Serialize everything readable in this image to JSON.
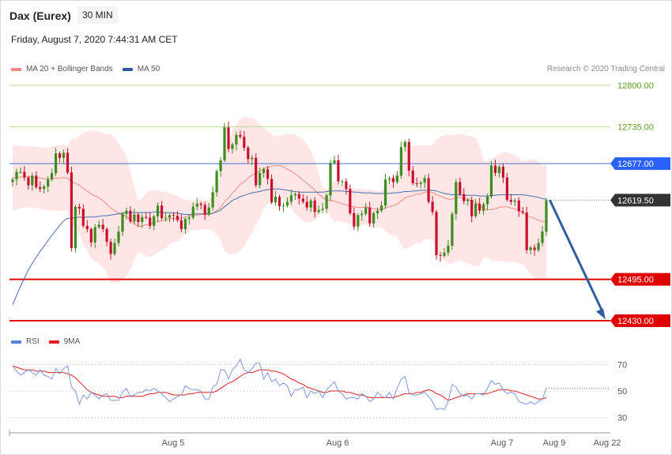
{
  "header": {
    "instrument": "Dax (Eurex)",
    "timeframe": "30 MIN",
    "datetime": "Friday, August 7, 2020 7:44:31 AM CET"
  },
  "legend_main": [
    {
      "label": "MA 20 + Bollinger Bands",
      "color": "#f08a80"
    },
    {
      "label": "MA 50",
      "color": "#2e5a9c"
    }
  ],
  "credit": "Research © 2020 Trading Central",
  "legend_rsi": [
    {
      "label": "RSI",
      "color": "#5b7fd6"
    },
    {
      "label": "9MA",
      "color": "#e02020"
    }
  ],
  "colors": {
    "up": "#3c8c1e",
    "down": "#c8102e",
    "resistance": "#8bc34a",
    "pivot": "#2962ff",
    "support": "#e00000",
    "last": "#333333",
    "arrow": "#2e5f9e"
  },
  "chart_data": [
    {
      "type": "candlestick",
      "title": "Dax (Eurex)",
      "timeframe": "30 MIN",
      "x_labels": [
        "Aug 5",
        "Aug 6",
        "Aug 7",
        "Aug 9",
        "Aug 22"
      ],
      "ylim": [
        12412,
        12832
      ],
      "levels": [
        {
          "value": 12800.0,
          "label": "12800.00",
          "kind": "resistance"
        },
        {
          "value": 12735.0,
          "label": "12735.00",
          "kind": "resistance"
        },
        {
          "value": 12677.0,
          "label": "12677.00",
          "kind": "pivot"
        },
        {
          "value": 12619.5,
          "label": "12619.50",
          "kind": "last"
        },
        {
          "value": 12495.0,
          "label": "12495.00",
          "kind": "support"
        },
        {
          "value": 12430.0,
          "label": "12430.00",
          "kind": "support"
        }
      ],
      "closes": [
        12652,
        12664,
        12664,
        12655,
        12643,
        12658,
        12640,
        12637,
        12641,
        12652,
        12662,
        12693,
        12686,
        12694,
        12663,
        12544,
        12609,
        12606,
        12579,
        12574,
        12553,
        12577,
        12581,
        12574,
        12554,
        12535,
        12552,
        12570,
        12598,
        12603,
        12586,
        12597,
        12585,
        12593,
        12592,
        12579,
        12594,
        12611,
        12591,
        12592,
        12596,
        12595,
        12588,
        12574,
        12590,
        12592,
        12609,
        12614,
        12612,
        12597,
        12608,
        12632,
        12665,
        12682,
        12734,
        12700,
        12707,
        12722,
        12719,
        12702,
        12684,
        12686,
        12643,
        12662,
        12668,
        12653,
        12616,
        12625,
        12610,
        12611,
        12617,
        12627,
        12629,
        12622,
        12617,
        12608,
        12619,
        12601,
        12604,
        12606,
        12627,
        12678,
        12682,
        12649,
        12649,
        12637,
        12599,
        12578,
        12596,
        12598,
        12608,
        12583,
        12599,
        12603,
        12611,
        12652,
        12654,
        12648,
        12658,
        12703,
        12711,
        12666,
        12646,
        12645,
        12647,
        12654,
        12617,
        12601,
        12533,
        12532,
        12537,
        12548,
        12598,
        12648,
        12629,
        12618,
        12620,
        12594,
        12614,
        12603,
        12613,
        12625,
        12674,
        12662,
        12672,
        12655,
        12620,
        12617,
        12619,
        12602,
        12600,
        12541,
        12545,
        12541,
        12552,
        12570,
        12619.5
      ],
      "ma20": [
        12655,
        12655,
        12656,
        12656,
        12656,
        12656,
        12655,
        12654,
        12653,
        12653,
        12653,
        12654,
        12654,
        12655,
        12654,
        12648,
        12646,
        12643,
        12638,
        12634,
        12629,
        12626,
        12623,
        12619,
        12613,
        12607,
        12603,
        12599,
        12597,
        12594,
        12588,
        12583,
        12578,
        12579,
        12581,
        12582,
        12584,
        12586,
        12587,
        12588,
        12590,
        12591,
        12590,
        12591,
        12593,
        12595,
        12596,
        12596,
        12597,
        12597,
        12597,
        12599,
        12603,
        12608,
        12617,
        12623,
        12631,
        12637,
        12644,
        12649,
        12654,
        12659,
        12662,
        12665,
        12669,
        12671,
        12673,
        12674,
        12674,
        12672,
        12668,
        12665,
        12661,
        12656,
        12651,
        12646,
        12641,
        12635,
        12629,
        12624,
        12620,
        12619,
        12618,
        12616,
        12614,
        12612,
        12610,
        12609,
        12608,
        12608,
        12609,
        12607,
        12606,
        12605,
        12605,
        12607,
        12609,
        12611,
        12613,
        12618,
        12623,
        12625,
        12627,
        12629,
        12629,
        12632,
        12632,
        12632,
        12628,
        12626,
        12623,
        12621,
        12621,
        12623,
        12624,
        12622,
        12621,
        12618,
        12616,
        12611,
        12606,
        12604,
        12605,
        12606,
        12608,
        12609,
        12609,
        12607,
        12606,
        12603,
        12600,
        12596,
        12593,
        12591,
        12588,
        12586,
        12586
      ],
      "bb_upper": [
        12707,
        12705,
        12705,
        12704,
        12704,
        12704,
        12703,
        12702,
        12702,
        12702,
        12703,
        12705,
        12706,
        12707,
        12705,
        12716,
        12716,
        12720,
        12725,
        12727,
        12730,
        12728,
        12727,
        12724,
        12723,
        12724,
        12717,
        12709,
        12699,
        12689,
        12665,
        12641,
        12618,
        12623,
        12630,
        12634,
        12635,
        12635,
        12633,
        12632,
        12630,
        12628,
        12626,
        12622,
        12621,
        12619,
        12619,
        12620,
        12620,
        12620,
        12620,
        12626,
        12641,
        12659,
        12695,
        12711,
        12728,
        12738,
        12748,
        12751,
        12750,
        12749,
        12744,
        12738,
        12733,
        12728,
        12723,
        12720,
        12720,
        12723,
        12723,
        12723,
        12723,
        12719,
        12715,
        12708,
        12696,
        12683,
        12663,
        12640,
        12636,
        12644,
        12651,
        12645,
        12643,
        12640,
        12638,
        12638,
        12637,
        12637,
        12636,
        12637,
        12635,
        12633,
        12633,
        12643,
        12652,
        12658,
        12664,
        12687,
        12704,
        12705,
        12705,
        12706,
        12706,
        12706,
        12706,
        12706,
        12715,
        12719,
        12721,
        12722,
        12722,
        12723,
        12723,
        12722,
        12721,
        12719,
        12717,
        12705,
        12683,
        12679,
        12684,
        12688,
        12692,
        12695,
        12695,
        12692,
        12690,
        12686,
        12681,
        12681,
        12683,
        12684,
        12680,
        12675,
        12675
      ],
      "bb_lower": [
        12603,
        12605,
        12607,
        12608,
        12608,
        12608,
        12607,
        12606,
        12604,
        12604,
        12603,
        12603,
        12602,
        12603,
        12603,
        12580,
        12576,
        12566,
        12551,
        12541,
        12528,
        12524,
        12519,
        12514,
        12503,
        12490,
        12489,
        12489,
        12495,
        12499,
        12511,
        12525,
        12538,
        12535,
        12532,
        12530,
        12533,
        12537,
        12541,
        12544,
        12550,
        12554,
        12554,
        12560,
        12565,
        12571,
        12573,
        12572,
        12574,
        12574,
        12574,
        12572,
        12565,
        12557,
        12539,
        12535,
        12534,
        12536,
        12540,
        12547,
        12558,
        12569,
        12580,
        12592,
        12605,
        12614,
        12623,
        12628,
        12628,
        12621,
        12613,
        12607,
        12599,
        12593,
        12587,
        12584,
        12586,
        12587,
        12595,
        12608,
        12604,
        12594,
        12585,
        12587,
        12585,
        12584,
        12582,
        12580,
        12579,
        12579,
        12582,
        12577,
        12577,
        12577,
        12577,
        12571,
        12566,
        12564,
        12562,
        12549,
        12542,
        12545,
        12549,
        12552,
        12552,
        12558,
        12558,
        12558,
        12541,
        12533,
        12525,
        12520,
        12520,
        12523,
        12525,
        12522,
        12521,
        12517,
        12515,
        12517,
        12529,
        12529,
        12526,
        12524,
        12524,
        12523,
        12523,
        12522,
        12522,
        12520,
        12519,
        12511,
        12503,
        12498,
        12496,
        12497,
        12497
      ],
      "ma50": [
        12455,
        12470,
        12484,
        12497,
        12510,
        12520,
        12530,
        12539,
        12547,
        12556,
        12564,
        12572,
        12580,
        12587,
        12591,
        12591,
        12592,
        12593,
        12592,
        12593,
        12593,
        12593,
        12594,
        12595,
        12595,
        12596,
        12597,
        12598,
        12599,
        12600,
        12600,
        12600,
        12600,
        12600,
        12600,
        12600,
        12601,
        12601,
        12600,
        12600,
        12600,
        12599,
        12599,
        12598,
        12597,
        12597,
        12598,
        12598,
        12598,
        12598,
        12598,
        12599,
        12601,
        12604,
        12609,
        12614,
        12619,
        12622,
        12625,
        12627,
        12629,
        12631,
        12632,
        12633,
        12635,
        12636,
        12637,
        12637,
        12637,
        12636,
        12635,
        12634,
        12633,
        12632,
        12632,
        12632,
        12632,
        12632,
        12632,
        12632,
        12633,
        12634,
        12634,
        12634,
        12634,
        12633,
        12633,
        12632,
        12632,
        12631,
        12631,
        12631,
        12630,
        12630,
        12630,
        12630,
        12630,
        12631,
        12631,
        12632,
        12633,
        12633,
        12634,
        12634,
        12635,
        12635,
        12635,
        12635,
        12634,
        12632,
        12630,
        12629,
        12628,
        12628,
        12628,
        12627,
        12627,
        12627,
        12627,
        12626,
        12626,
        12626,
        12627,
        12627,
        12628,
        12628,
        12628,
        12628,
        12628,
        12628,
        12628,
        12627,
        12626,
        12625,
        12624,
        12622,
        12621
      ]
    },
    {
      "type": "line",
      "title": "RSI",
      "y_ticks": [
        70,
        50,
        30
      ],
      "ylim": [
        21,
        81
      ],
      "series": [
        {
          "name": "RSI",
          "values": [
            69,
            65,
            62,
            64,
            66,
            64,
            62,
            66,
            62,
            61,
            59,
            67,
            63,
            67,
            69,
            53,
            50,
            40,
            47,
            44,
            49,
            47,
            44,
            47,
            48,
            43,
            43,
            43,
            49,
            52,
            46,
            47,
            49,
            49,
            51,
            50,
            52,
            50,
            48,
            45,
            42,
            44,
            46,
            47,
            54,
            52,
            51,
            51,
            50,
            44,
            44,
            53,
            55,
            66,
            66,
            59,
            66,
            69,
            74,
            66,
            64,
            67,
            71,
            71,
            59,
            64,
            57,
            59,
            54,
            56,
            54,
            46,
            51,
            51,
            53,
            45,
            50,
            48,
            50,
            45,
            51,
            54,
            57,
            50,
            48,
            44,
            45,
            45,
            44,
            48,
            46,
            42,
            44,
            49,
            46,
            45,
            49,
            44,
            52,
            59,
            61,
            49,
            47,
            47,
            48,
            49,
            46,
            42,
            36,
            37,
            36,
            42,
            55,
            53,
            48,
            46,
            47,
            44,
            48,
            48,
            47,
            52,
            58,
            55,
            56,
            51,
            48,
            49,
            48,
            42,
            41,
            40,
            42,
            40,
            42,
            44,
            52
          ]
        },
        {
          "name": "9MA",
          "values": [
            69,
            68,
            67,
            66,
            66,
            66,
            65,
            65,
            65,
            64,
            64,
            64,
            64,
            64,
            63,
            62,
            60,
            57,
            54,
            51,
            49,
            48,
            47,
            46,
            46,
            46,
            46,
            45,
            45,
            46,
            46,
            46,
            46,
            46,
            47,
            48,
            48,
            49,
            49,
            49,
            48,
            47,
            47,
            47,
            47,
            48,
            48,
            49,
            49,
            49,
            49,
            49,
            50,
            52,
            54,
            56,
            57,
            59,
            61,
            63,
            64,
            64,
            65,
            66,
            66,
            66,
            65,
            65,
            64,
            63,
            61,
            59,
            58,
            56,
            55,
            53,
            52,
            51,
            50,
            49,
            49,
            50,
            50,
            50,
            50,
            49,
            49,
            48,
            47,
            47,
            46,
            45,
            45,
            45,
            45,
            45,
            45,
            45,
            46,
            47,
            48,
            48,
            48,
            49,
            49,
            50,
            51,
            50,
            48,
            47,
            45,
            43,
            44,
            45,
            46,
            47,
            48,
            48,
            48,
            48,
            48,
            48,
            49,
            50,
            51,
            51,
            51,
            50,
            50,
            49,
            48,
            47,
            46,
            45,
            44,
            44,
            45
          ]
        }
      ]
    }
  ]
}
